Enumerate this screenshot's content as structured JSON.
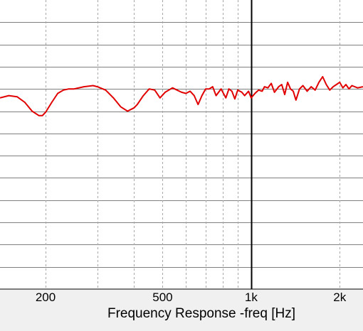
{
  "chart_data": {
    "type": "line",
    "title": "",
    "xlabel": "Frequency Response -freq [Hz]",
    "ylabel": "",
    "x_scale": "log",
    "xlim": [
      140,
      2400
    ],
    "x_major_ticks": [
      200,
      500,
      1000,
      2000
    ],
    "x_tick_labels": [
      "200",
      "500",
      "1k",
      "2k"
    ],
    "x_minor_grid": [
      200,
      300,
      400,
      500,
      600,
      700,
      800,
      900,
      1000,
      2000
    ],
    "marker_x": 1000,
    "ylim": [
      0,
      13
    ],
    "y_gridlines": [
      1,
      2,
      3,
      4,
      5,
      6,
      7,
      8,
      9,
      10,
      11,
      12
    ],
    "grid": true,
    "colors": {
      "background": "#ffffff",
      "frame": "#f0f0f0",
      "series": "#e00000",
      "grid_major": "#808080",
      "grid_minor": "#a8a8a8",
      "marker": "#000000"
    },
    "series": [
      {
        "name": "",
        "x": [
          140,
          150,
          160,
          170,
          180,
          190,
          195,
          200,
          210,
          220,
          230,
          240,
          250,
          270,
          290,
          300,
          320,
          340,
          360,
          380,
          400,
          410,
          430,
          450,
          470,
          490,
          510,
          540,
          560,
          580,
          600,
          620,
          640,
          660,
          680,
          700,
          720,
          740,
          760,
          790,
          820,
          840,
          860,
          880,
          900,
          930,
          950,
          980,
          1000,
          1030,
          1060,
          1090,
          1110,
          1140,
          1170,
          1200,
          1240,
          1270,
          1300,
          1330,
          1360,
          1390,
          1420,
          1460,
          1500,
          1550,
          1600,
          1650,
          1700,
          1750,
          1800,
          1850,
          1900,
          1950,
          2000,
          2050,
          2100,
          2150,
          2200,
          2300,
          2400
        ],
        "y": [
          8.6,
          8.7,
          8.65,
          8.4,
          8.0,
          7.8,
          7.8,
          7.95,
          8.4,
          8.8,
          8.95,
          9.0,
          9.0,
          9.1,
          9.15,
          9.1,
          8.95,
          8.6,
          8.2,
          8.0,
          8.15,
          8.3,
          8.7,
          9.0,
          8.95,
          8.6,
          8.85,
          9.05,
          8.95,
          8.85,
          8.8,
          8.9,
          8.7,
          8.3,
          8.7,
          9.0,
          9.0,
          9.1,
          8.7,
          9.0,
          8.6,
          9.0,
          8.9,
          8.55,
          8.95,
          8.85,
          8.7,
          8.9,
          8.6,
          8.8,
          8.95,
          8.9,
          9.1,
          9.05,
          9.25,
          8.85,
          9.1,
          9.2,
          8.75,
          9.3,
          9.0,
          8.9,
          8.5,
          9.0,
          9.15,
          8.9,
          9.1,
          8.95,
          9.3,
          9.55,
          9.2,
          8.95,
          9.1,
          9.2,
          9.3,
          9.05,
          9.2,
          9.0,
          9.15,
          9.05,
          9.1
        ]
      }
    ]
  }
}
